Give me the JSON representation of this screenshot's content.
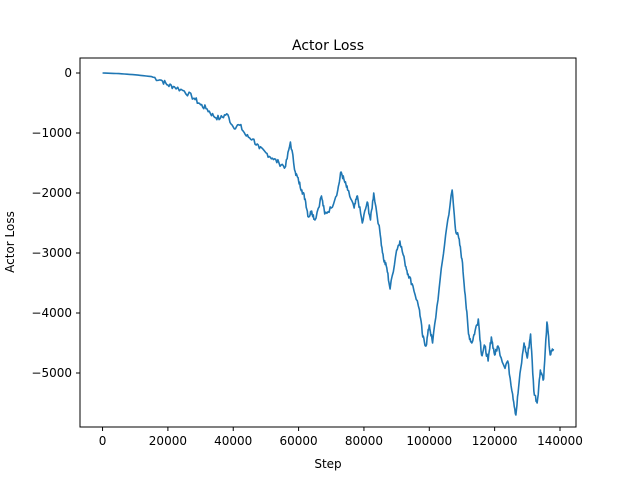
{
  "chart_data": {
    "type": "line",
    "title": "Actor Loss",
    "xlabel": "Step",
    "ylabel": "Actor Loss",
    "xlim": [
      -6900,
      144900
    ],
    "ylim": [
      -5900,
      250
    ],
    "xticks": [
      0,
      20000,
      40000,
      60000,
      80000,
      100000,
      120000,
      140000
    ],
    "xtick_labels": [
      "0",
      "20000",
      "40000",
      "60000",
      "80000",
      "100000",
      "120000",
      "140000"
    ],
    "yticks": [
      0,
      -1000,
      -2000,
      -3000,
      -4000,
      -5000
    ],
    "ytick_labels": [
      "0",
      "−1000",
      "−2000",
      "−3000",
      "−4000",
      "−5000"
    ],
    "grid": false,
    "legend": "none",
    "series": [
      {
        "color": "#1f77b4",
        "x": [
          0,
          5000,
          10000,
          15000,
          18000,
          20000,
          22000,
          25000,
          28000,
          30000,
          32000,
          34000,
          36000,
          38000,
          40000,
          42000,
          44000,
          46000,
          48000,
          50000,
          52000,
          54000,
          56000,
          57500,
          59000,
          60000,
          61000,
          62000,
          63000,
          64000,
          65000,
          67000,
          68000,
          70000,
          72000,
          73000,
          74000,
          75000,
          77000,
          78000,
          79500,
          81000,
          82000,
          83000,
          85000,
          86000,
          87000,
          88000,
          90000,
          91000,
          92500,
          93500,
          95000,
          97000,
          98000,
          99000,
          100000,
          101000,
          103000,
          105000,
          107000,
          108000,
          109000,
          110000,
          111000,
          112000,
          113000,
          114000,
          115000,
          116000,
          117000,
          118000,
          119000,
          120000,
          121000,
          123000,
          124000,
          125500,
          126500,
          127500,
          129000,
          130000,
          131000,
          132000,
          133000,
          134000,
          135000,
          136000,
          137000,
          138000
        ],
        "y": [
          0,
          -10,
          -30,
          -60,
          -120,
          -200,
          -230,
          -300,
          -420,
          -530,
          -600,
          -720,
          -760,
          -680,
          -900,
          -870,
          -1050,
          -1100,
          -1260,
          -1330,
          -1420,
          -1500,
          -1560,
          -1150,
          -1650,
          -1800,
          -1950,
          -2100,
          -2400,
          -2300,
          -2450,
          -2050,
          -2350,
          -2250,
          -1950,
          -1650,
          -1800,
          -1950,
          -2250,
          -2050,
          -2500,
          -2150,
          -2450,
          -2000,
          -2700,
          -3100,
          -3250,
          -3600,
          -2950,
          -2800,
          -3150,
          -3350,
          -3550,
          -3950,
          -4400,
          -4550,
          -4200,
          -4500,
          -3600,
          -2700,
          -1950,
          -2600,
          -2750,
          -3100,
          -3700,
          -4350,
          -4500,
          -4300,
          -4100,
          -4700,
          -4550,
          -4800,
          -4400,
          -4700,
          -4550,
          -4900,
          -4800,
          -5350,
          -5700,
          -5150,
          -4500,
          -4750,
          -4350,
          -5300,
          -5500,
          -4950,
          -5100,
          -4150,
          -4700,
          -4600
        ]
      }
    ]
  }
}
